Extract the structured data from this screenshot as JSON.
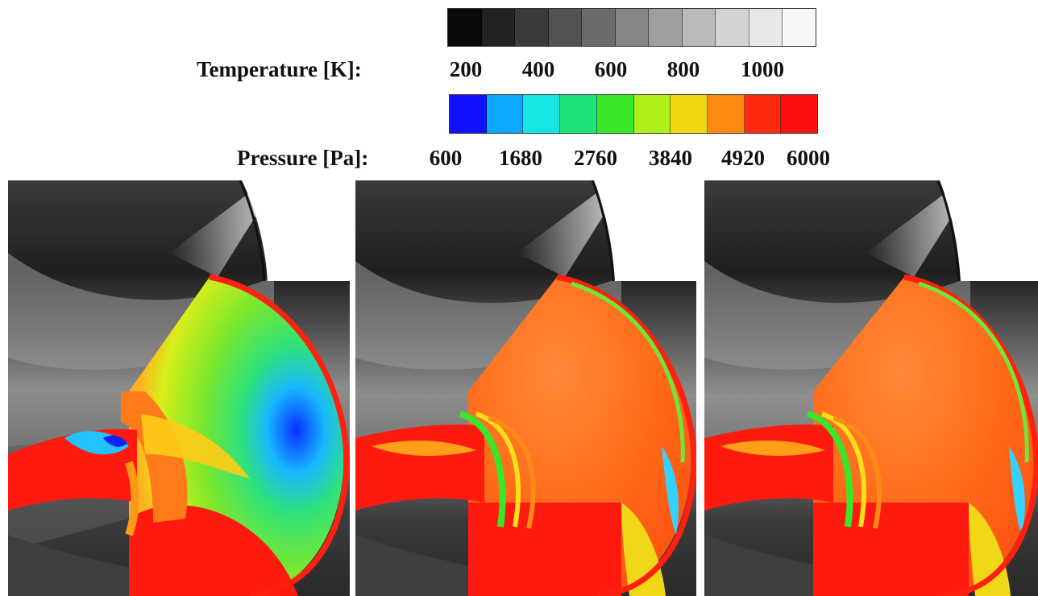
{
  "legend": {
    "temperature": {
      "label": "Temperature [K]:",
      "ticks": [
        "200",
        "400",
        "600",
        "800",
        "1000"
      ],
      "colors": [
        "#0b0b0b",
        "#222222",
        "#3a3a3a",
        "#525252",
        "#6b6b6b",
        "#858585",
        "#9f9f9f",
        "#b9b9b9",
        "#d3d3d3",
        "#e8e8e8",
        "#f8f8f8"
      ]
    },
    "pressure": {
      "label": "Pressure [Pa]:",
      "ticks": [
        "600",
        "1680",
        "2760",
        "3840",
        "4920",
        "6000"
      ],
      "colors": [
        "#1010ff",
        "#0aa8ff",
        "#14e6e6",
        "#20e27a",
        "#3ae62a",
        "#aef018",
        "#f0d810",
        "#ff8a10",
        "#ff2a10",
        "#ff1010"
      ]
    }
  },
  "panels": [
    {
      "name": "panel-1",
      "cap_fill": "green-blue"
    },
    {
      "name": "panel-2",
      "cap_fill": "orange"
    },
    {
      "name": "panel-3",
      "cap_fill": "orange"
    }
  ]
}
